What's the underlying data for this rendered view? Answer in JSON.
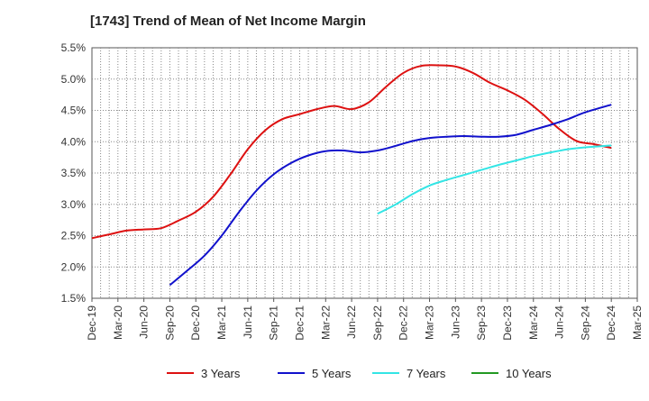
{
  "chart_data": {
    "type": "line",
    "title": "[1743]  Trend of Mean of Net Income Margin",
    "xlabel": "",
    "ylabel": "",
    "ylim": [
      1.5,
      5.5
    ],
    "y_ticks": [
      "1.5%",
      "2.0%",
      "2.5%",
      "3.0%",
      "3.5%",
      "4.0%",
      "4.5%",
      "5.0%",
      "5.5%"
    ],
    "x_ticks": [
      "Dec-19",
      "Mar-20",
      "Jun-20",
      "Sep-20",
      "Dec-20",
      "Mar-21",
      "Jun-21",
      "Sep-21",
      "Dec-21",
      "Mar-22",
      "Jun-22",
      "Sep-22",
      "Dec-22",
      "Mar-23",
      "Jun-23",
      "Sep-23",
      "Dec-23",
      "Mar-24",
      "Jun-24",
      "Sep-24",
      "Dec-24",
      "Mar-25"
    ],
    "grid": true,
    "legend_position": "bottom",
    "series": [
      {
        "name": "3 Years",
        "color": "#dd1111",
        "points": [
          [
            "Dec-19",
            2.46
          ],
          [
            "Feb-20",
            2.52
          ],
          [
            "Apr-20",
            2.58
          ],
          [
            "Jun-20",
            2.6
          ],
          [
            "Aug-20",
            2.62
          ],
          [
            "Oct-20",
            2.74
          ],
          [
            "Dec-20",
            2.88
          ],
          [
            "Feb-21",
            3.12
          ],
          [
            "Apr-21",
            3.48
          ],
          [
            "Jun-21",
            3.88
          ],
          [
            "Aug-21",
            4.18
          ],
          [
            "Oct-21",
            4.36
          ],
          [
            "Dec-21",
            4.44
          ],
          [
            "Feb-22",
            4.52
          ],
          [
            "Apr-22",
            4.57
          ],
          [
            "Jun-22",
            4.52
          ],
          [
            "Aug-22",
            4.63
          ],
          [
            "Oct-22",
            4.88
          ],
          [
            "Dec-22",
            5.1
          ],
          [
            "Feb-23",
            5.21
          ],
          [
            "Apr-23",
            5.22
          ],
          [
            "Jun-23",
            5.2
          ],
          [
            "Aug-23",
            5.1
          ],
          [
            "Oct-23",
            4.94
          ],
          [
            "Dec-23",
            4.82
          ],
          [
            "Feb-24",
            4.67
          ],
          [
            "Apr-24",
            4.45
          ],
          [
            "Jun-24",
            4.2
          ],
          [
            "Aug-24",
            4.01
          ],
          [
            "Oct-24",
            3.96
          ],
          [
            "Dec-24",
            3.9
          ]
        ]
      },
      {
        "name": "5 Years",
        "color": "#1111cc",
        "points": [
          [
            "Sep-20",
            1.71
          ],
          [
            "Nov-20",
            1.94
          ],
          [
            "Jan-21",
            2.18
          ],
          [
            "Mar-21",
            2.5
          ],
          [
            "May-21",
            2.88
          ],
          [
            "Jul-21",
            3.22
          ],
          [
            "Sep-21",
            3.48
          ],
          [
            "Nov-21",
            3.66
          ],
          [
            "Jan-22",
            3.78
          ],
          [
            "Mar-22",
            3.85
          ],
          [
            "May-22",
            3.86
          ],
          [
            "Jul-22",
            3.83
          ],
          [
            "Sep-22",
            3.86
          ],
          [
            "Nov-22",
            3.93
          ],
          [
            "Jan-23",
            4.01
          ],
          [
            "Mar-23",
            4.06
          ],
          [
            "May-23",
            4.08
          ],
          [
            "Jul-23",
            4.09
          ],
          [
            "Sep-23",
            4.08
          ],
          [
            "Nov-23",
            4.08
          ],
          [
            "Jan-24",
            4.11
          ],
          [
            "Mar-24",
            4.19
          ],
          [
            "May-24",
            4.27
          ],
          [
            "Jul-24",
            4.36
          ],
          [
            "Sep-24",
            4.47
          ],
          [
            "Dec-24",
            4.59
          ]
        ]
      },
      {
        "name": "7 Years",
        "color": "#33e5e5",
        "points": [
          [
            "Sep-22",
            2.85
          ],
          [
            "Nov-22",
            2.99
          ],
          [
            "Jan-23",
            3.16
          ],
          [
            "Mar-23",
            3.3
          ],
          [
            "May-23",
            3.39
          ],
          [
            "Jul-23",
            3.47
          ],
          [
            "Sep-23",
            3.55
          ],
          [
            "Nov-23",
            3.63
          ],
          [
            "Jan-24",
            3.7
          ],
          [
            "Mar-24",
            3.77
          ],
          [
            "May-24",
            3.83
          ],
          [
            "Jul-24",
            3.88
          ],
          [
            "Sep-24",
            3.91
          ],
          [
            "Dec-24",
            3.94
          ]
        ]
      },
      {
        "name": "10 Years",
        "color": "#229922",
        "points": []
      }
    ]
  }
}
